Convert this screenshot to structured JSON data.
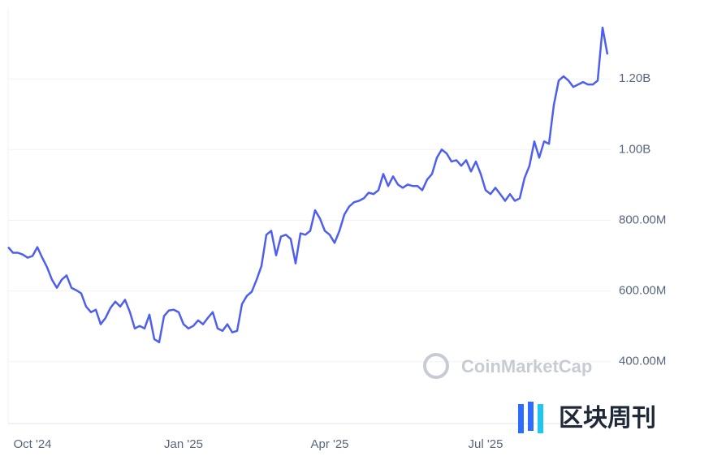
{
  "chart_data": {
    "type": "line",
    "color": "#4e5ff0",
    "watermark": "CoinMarketCap",
    "logo_text": "区块周刊",
    "grid": true,
    "ylim": [
      225000000,
      1400000000
    ],
    "yticks": [
      {
        "value": 400000000,
        "label": "400.00M"
      },
      {
        "value": 600000000,
        "label": "600.00M"
      },
      {
        "value": 800000000,
        "label": "800.00M"
      },
      {
        "value": 1000000000,
        "label": "1.00B"
      },
      {
        "value": 1200000000,
        "label": "1.20B"
      }
    ],
    "categories": [
      null,
      null,
      null,
      null,
      null,
      "Oct '24",
      null,
      null,
      null,
      null,
      null,
      null,
      null,
      null,
      null,
      null,
      null,
      null,
      null,
      null,
      null,
      null,
      null,
      null,
      null,
      null,
      null,
      null,
      null,
      null,
      null,
      null,
      null,
      null,
      null,
      null,
      "Jan '25",
      null,
      null,
      null,
      null,
      null,
      null,
      null,
      null,
      null,
      null,
      null,
      null,
      null,
      null,
      null,
      null,
      null,
      null,
      null,
      null,
      null,
      null,
      null,
      null,
      null,
      null,
      null,
      null,
      null,
      "Apr '25",
      null,
      null,
      null,
      null,
      null,
      null,
      null,
      null,
      null,
      null,
      null,
      null,
      null,
      null,
      null,
      null,
      null,
      null,
      null,
      null,
      null,
      null,
      null,
      null,
      null,
      null,
      null,
      null,
      null,
      null,
      null,
      "Jul '25",
      null,
      null,
      null,
      null,
      null,
      null,
      null,
      null,
      null,
      null,
      null,
      null,
      null,
      null,
      null,
      null,
      null,
      null,
      null,
      null,
      null,
      null,
      null,
      null,
      null
    ],
    "values": [
      724000000,
      708000000,
      708000000,
      703000000,
      694000000,
      699000000,
      724000000,
      694000000,
      667000000,
      632000000,
      609000000,
      632000000,
      644000000,
      609000000,
      602000000,
      593000000,
      556000000,
      540000000,
      547000000,
      506000000,
      524000000,
      552000000,
      570000000,
      556000000,
      575000000,
      540000000,
      494000000,
      501000000,
      494000000,
      533000000,
      464000000,
      455000000,
      529000000,
      545000000,
      547000000,
      540000000,
      506000000,
      494000000,
      501000000,
      517000000,
      506000000,
      524000000,
      540000000,
      494000000,
      487000000,
      506000000,
      483000000,
      487000000,
      563000000,
      586000000,
      598000000,
      632000000,
      671000000,
      759000000,
      770000000,
      701000000,
      754000000,
      759000000,
      747000000,
      678000000,
      763000000,
      759000000,
      770000000,
      828000000,
      805000000,
      770000000,
      759000000,
      736000000,
      770000000,
      816000000,
      839000000,
      851000000,
      855000000,
      862000000,
      878000000,
      874000000,
      885000000,
      931000000,
      897000000,
      924000000,
      901000000,
      892000000,
      901000000,
      897000000,
      897000000,
      885000000,
      915000000,
      931000000,
      977000000,
      1000000000,
      989000000,
      966000000,
      970000000,
      954000000,
      970000000,
      938000000,
      966000000,
      931000000,
      885000000,
      874000000,
      892000000,
      874000000,
      855000000,
      874000000,
      855000000,
      862000000,
      920000000,
      954000000,
      1023000000,
      977000000,
      1023000000,
      1016000000,
      1126000000,
      1195000000,
      1207000000,
      1195000000,
      1177000000,
      1184000000,
      1191000000,
      1184000000,
      1184000000,
      1195000000,
      1345000000,
      1269000000
    ]
  }
}
